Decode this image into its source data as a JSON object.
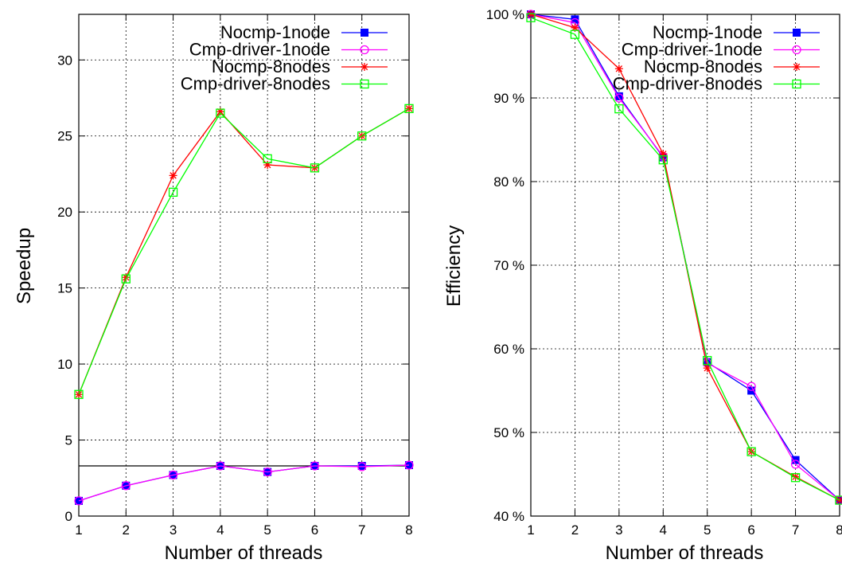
{
  "chart_data": [
    {
      "type": "line",
      "xlabel": "Number of threads",
      "ylabel": "Speedup",
      "x": [
        1,
        2,
        3,
        4,
        5,
        6,
        7,
        8
      ],
      "xlim": [
        1,
        8
      ],
      "ylim": [
        0,
        33
      ],
      "yticks": [
        0,
        5,
        10,
        15,
        20,
        25,
        30
      ],
      "ytick_labels": [
        "0",
        "5",
        "10",
        "15",
        "20",
        "25",
        "30"
      ],
      "xtick_labels": [
        "1",
        "2",
        "3",
        "4",
        "5",
        "6",
        "7",
        "8"
      ],
      "grid": true,
      "legend_position": "top-right",
      "reference_line": 3.3,
      "series": [
        {
          "name": "Nocmp-1node",
          "color": "#0000ff",
          "marker": "filled-square",
          "values": [
            1.0,
            2.0,
            2.7,
            3.3,
            2.9,
            3.3,
            3.3,
            3.35
          ]
        },
        {
          "name": "Cmp-driver-1node",
          "color": "#ff00ff",
          "marker": "open-circle",
          "values": [
            1.0,
            2.0,
            2.7,
            3.3,
            2.9,
            3.3,
            3.25,
            3.35
          ]
        },
        {
          "name": "Nocmp-8nodes",
          "color": "#ff0000",
          "marker": "asterisk",
          "values": [
            8.0,
            15.7,
            22.4,
            26.6,
            23.1,
            22.9,
            25.0,
            26.8
          ]
        },
        {
          "name": "Cmp-driver-8nodes",
          "color": "#00ff00",
          "marker": "open-square",
          "values": [
            8.0,
            15.6,
            21.3,
            26.5,
            23.5,
            22.9,
            25.0,
            26.8
          ]
        }
      ]
    },
    {
      "type": "line",
      "xlabel": "Number of threads",
      "ylabel": "Efficiency",
      "x": [
        1,
        2,
        3,
        4,
        5,
        6,
        7,
        8
      ],
      "xlim": [
        1,
        8
      ],
      "ylim": [
        40,
        100
      ],
      "yticks": [
        40,
        50,
        60,
        70,
        80,
        90,
        100
      ],
      "ytick_labels": [
        "40 %",
        "50 %",
        "60 %",
        "70 %",
        "80 %",
        "90 %",
        "100 %"
      ],
      "xtick_labels": [
        "1",
        "2",
        "3",
        "4",
        "5",
        "6",
        "7",
        "8"
      ],
      "grid": true,
      "legend_position": "top-right",
      "series": [
        {
          "name": "Nocmp-1node",
          "color": "#0000ff",
          "marker": "filled-square",
          "values": [
            100.0,
            99.4,
            90.2,
            82.9,
            58.4,
            55.0,
            46.7,
            41.9
          ]
        },
        {
          "name": "Cmp-driver-1node",
          "color": "#ff00ff",
          "marker": "open-circle",
          "values": [
            100.0,
            99.0,
            90.0,
            83.0,
            58.3,
            55.5,
            46.2,
            41.9
          ]
        },
        {
          "name": "Nocmp-8nodes",
          "color": "#ff0000",
          "marker": "asterisk",
          "values": [
            100.0,
            98.4,
            93.5,
            83.3,
            57.7,
            47.7,
            44.7,
            41.9
          ]
        },
        {
          "name": "Cmp-driver-8nodes",
          "color": "#00ff00",
          "marker": "open-square",
          "values": [
            99.6,
            97.6,
            88.7,
            82.6,
            58.6,
            47.7,
            44.6,
            41.9
          ]
        }
      ]
    }
  ]
}
